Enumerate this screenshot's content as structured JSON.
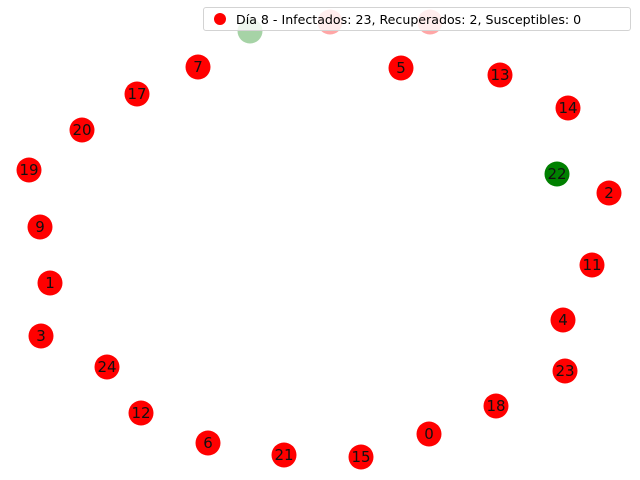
{
  "graph": {
    "colors": {
      "infected": "#ff0000",
      "recovered": "#008000",
      "susceptible": "#ffffff"
    },
    "nodes": [
      {
        "label": "0",
        "status": "infected"
      },
      {
        "label": "1",
        "status": "infected"
      },
      {
        "label": "2",
        "status": "infected"
      },
      {
        "label": "3",
        "status": "infected"
      },
      {
        "label": "4",
        "status": "infected"
      },
      {
        "label": "5",
        "status": "infected"
      },
      {
        "label": "6",
        "status": "infected"
      },
      {
        "label": "7",
        "status": "infected"
      },
      {
        "label": "9",
        "status": "infected"
      },
      {
        "label": "11",
        "status": "infected"
      },
      {
        "label": "12",
        "status": "infected"
      },
      {
        "label": "13",
        "status": "infected"
      },
      {
        "label": "14",
        "status": "infected"
      },
      {
        "label": "15",
        "status": "infected"
      },
      {
        "label": "17",
        "status": "infected"
      },
      {
        "label": "18",
        "status": "infected"
      },
      {
        "label": "19",
        "status": "infected"
      },
      {
        "label": "20",
        "status": "infected"
      },
      {
        "label": "21",
        "status": "infected"
      },
      {
        "label": "22",
        "status": "recovered"
      },
      {
        "label": "23",
        "status": "infected"
      },
      {
        "label": "24",
        "status": "infected"
      },
      {
        "label": "",
        "status": "recovered"
      },
      {
        "label": "",
        "status": "infected"
      },
      {
        "label": "",
        "status": "infected"
      }
    ]
  },
  "legend": {
    "text": "Día 8 - Infectados: 23, Recuperados: 2, Susceptibles: 0",
    "marker_color": "#ff0000"
  }
}
